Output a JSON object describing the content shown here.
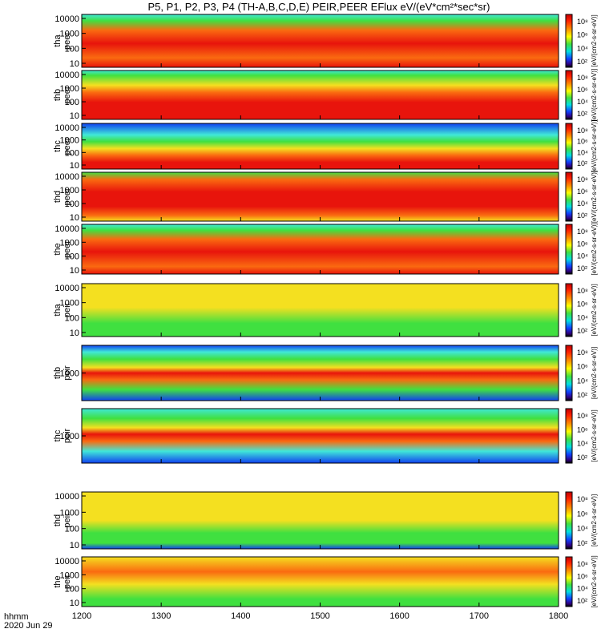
{
  "title": "P5, P1, P2, P3, P4 (TH-A,B,C,D,E) PEIR,PEER EFlux eV/(eV*cm²*sec*sr)",
  "time_axis": {
    "label_line1": "hhmm",
    "label_line2": "2020 Jun 29",
    "ticks": [
      "1200",
      "1300",
      "1400",
      "1500",
      "1600",
      "1700",
      "1800"
    ]
  },
  "chart_data": {
    "type": "heatmap",
    "x_range": [
      1200,
      1800
    ],
    "x_ticks": [
      1200,
      1300,
      1400,
      1500,
      1600,
      1700,
      1800
    ],
    "panels": [
      {
        "probe": "tha",
        "species": "peer",
        "y_ticks": [
          "10",
          "100",
          "1000",
          "10000"
        ],
        "colorbar_ticks": [
          "10²",
          "10⁴",
          "10⁶",
          "10⁸"
        ],
        "colorbar_label": "[eV/(cm2-s-sr-eV)]"
      },
      {
        "probe": "thb",
        "species": "peer",
        "y_ticks": [
          "10",
          "100",
          "1000",
          "10000"
        ],
        "colorbar_ticks": [
          "10²",
          "10⁴",
          "10⁶",
          "10⁸"
        ],
        "colorbar_label": "[eV/(cm2-s-sr-eV)]"
      },
      {
        "probe": "thc",
        "species": "peer",
        "y_ticks": [
          "10",
          "100",
          "1000",
          "10000"
        ],
        "colorbar_ticks": [
          "10²",
          "10⁴",
          "10⁶",
          "10⁸"
        ],
        "colorbar_label": "[eV/(cm2-s-sr-eV)]"
      },
      {
        "probe": "thd",
        "species": "peer",
        "y_ticks": [
          "10",
          "100",
          "1000",
          "10000"
        ],
        "colorbar_ticks": [
          "10²",
          "10⁴",
          "10⁶",
          "10⁸"
        ],
        "colorbar_label": "[eV/(cm2-s-sr-eV)]"
      },
      {
        "probe": "the",
        "species": "peer",
        "y_ticks": [
          "10",
          "100",
          "1000",
          "10000"
        ],
        "colorbar_ticks": [
          "10²",
          "10⁴",
          "10⁶",
          "10⁸"
        ],
        "colorbar_label": "[eV/(cm2-s-sr-eV)]"
      },
      {
        "probe": "tha",
        "species": "peir",
        "y_ticks": [
          "10",
          "100",
          "1000",
          "10000"
        ],
        "colorbar_ticks": [
          "10²",
          "10⁴",
          "10⁶",
          "10⁸"
        ],
        "colorbar_label": "[eV/(cm2-s-sr-eV)]"
      },
      {
        "probe": "thb",
        "species": "peir",
        "y_ticks": [
          "1000"
        ],
        "colorbar_ticks": [
          "10²",
          "10⁴",
          "10⁶",
          "10⁸"
        ],
        "colorbar_label": "[eV/(cm2-s-sr-eV)]"
      },
      {
        "probe": "thc",
        "species": "peir",
        "y_ticks": [
          "1000"
        ],
        "colorbar_ticks": [
          "10²",
          "10⁴",
          "10⁶",
          "10⁸"
        ],
        "colorbar_label": "[eV/(cm2-s-sr-eV)]"
      },
      {
        "probe": "thd",
        "species": "peir",
        "y_ticks": [
          "10",
          "100",
          "1000",
          "10000"
        ],
        "colorbar_ticks": [
          "10²",
          "10⁴",
          "10⁶",
          "10⁸"
        ],
        "colorbar_label": "[eV/(cm2-s-sr-eV)]"
      },
      {
        "probe": "the",
        "species": "peir",
        "y_ticks": [
          "10",
          "100",
          "1000",
          "10000"
        ],
        "colorbar_ticks": [
          "10²",
          "10⁴",
          "10⁶",
          "10⁸"
        ],
        "colorbar_label": "[eV/(cm2-s-sr-eV)]"
      }
    ]
  },
  "colors": {
    "red": "#e8140c",
    "orange": "#fa6a10",
    "yellow": "#f4e020",
    "green": "#40e040",
    "cyan": "#40e8d8",
    "blue": "#1040f0",
    "background": "#ffffff"
  }
}
